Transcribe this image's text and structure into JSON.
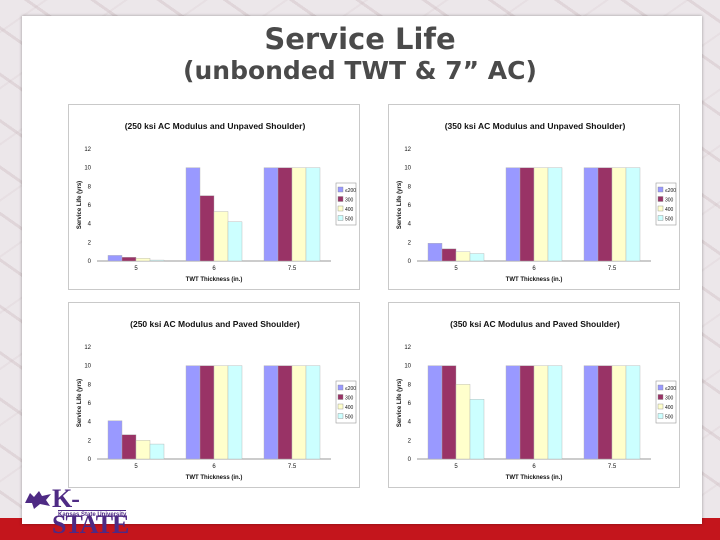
{
  "slide": {
    "title_line1": "Service Life",
    "title_line2": "(unbonded TWT & 7” AC)",
    "logo_text": "K-STATE",
    "logo_subtext": "Kansas State University",
    "accent_color": "#c4151c",
    "logo_color": "#4e2a84"
  },
  "chart_data": [
    {
      "type": "bar",
      "title": "(250 ksi AC Modulus and Unpaved Shoulder)",
      "xlabel": "TWT Thickness (in.)",
      "ylabel": "Service Life (yrs)",
      "categories": [
        "5",
        "6",
        "7.5"
      ],
      "ylim": [
        0,
        12
      ],
      "yticks": [
        "0",
        "2",
        "4",
        "6",
        "8",
        "10",
        "12"
      ],
      "legend_position": "right",
      "series": [
        {
          "name": "≤200",
          "color": "#9999ff",
          "values": [
            0.6,
            10,
            10
          ]
        },
        {
          "name": "300",
          "color": "#993366",
          "values": [
            0.4,
            7,
            10
          ]
        },
        {
          "name": "400",
          "color": "#ffffcc",
          "values": [
            0.3,
            5.3,
            10
          ]
        },
        {
          "name": "500",
          "color": "#ccffff",
          "values": [
            0.1,
            4.2,
            10
          ]
        }
      ]
    },
    {
      "type": "bar",
      "title": "(350 ksi AC Modulus and Unpaved Shoulder)",
      "xlabel": "TWT Thickness (in.)",
      "ylabel": "Service Life (yrs)",
      "categories": [
        "5",
        "6",
        "7.5"
      ],
      "ylim": [
        0,
        12
      ],
      "yticks": [
        "0",
        "2",
        "4",
        "6",
        "8",
        "10",
        "12"
      ],
      "legend_position": "right",
      "series": [
        {
          "name": "≤200",
          "color": "#9999ff",
          "values": [
            1.9,
            10,
            10
          ]
        },
        {
          "name": "300",
          "color": "#993366",
          "values": [
            1.3,
            10,
            10
          ]
        },
        {
          "name": "400",
          "color": "#ffffcc",
          "values": [
            1.0,
            10,
            10
          ]
        },
        {
          "name": "500",
          "color": "#ccffff",
          "values": [
            0.8,
            10,
            10
          ]
        }
      ]
    },
    {
      "type": "bar",
      "title": "(250 ksi AC Modulus and Paved Shoulder)",
      "xlabel": "TWT Thickness (in.)",
      "ylabel": "Service Life (yrs)",
      "categories": [
        "5",
        "6",
        "7.5"
      ],
      "ylim": [
        0,
        12
      ],
      "yticks": [
        "0",
        "2",
        "4",
        "6",
        "8",
        "10",
        "12"
      ],
      "legend_position": "right",
      "series": [
        {
          "name": "≤200",
          "color": "#9999ff",
          "values": [
            4.1,
            10,
            10
          ]
        },
        {
          "name": "300",
          "color": "#993366",
          "values": [
            2.6,
            10,
            10
          ]
        },
        {
          "name": "400",
          "color": "#ffffcc",
          "values": [
            2.0,
            10,
            10
          ]
        },
        {
          "name": "500",
          "color": "#ccffff",
          "values": [
            1.6,
            10,
            10
          ]
        }
      ]
    },
    {
      "type": "bar",
      "title": "(350 ksi AC Modulus and Paved Shoulder)",
      "xlabel": "TWT Thickness (in.)",
      "ylabel": "Service Life (yrs)",
      "categories": [
        "5",
        "6",
        "7.5"
      ],
      "ylim": [
        0,
        12
      ],
      "yticks": [
        "0",
        "2",
        "4",
        "6",
        "8",
        "10",
        "12"
      ],
      "legend_position": "right",
      "series": [
        {
          "name": "≤200",
          "color": "#9999ff",
          "values": [
            10,
            10,
            10
          ]
        },
        {
          "name": "300",
          "color": "#993366",
          "values": [
            10,
            10,
            10
          ]
        },
        {
          "name": "400",
          "color": "#ffffcc",
          "values": [
            8,
            10,
            10
          ]
        },
        {
          "name": "500",
          "color": "#ccffff",
          "values": [
            6.4,
            10,
            10
          ]
        }
      ]
    }
  ]
}
